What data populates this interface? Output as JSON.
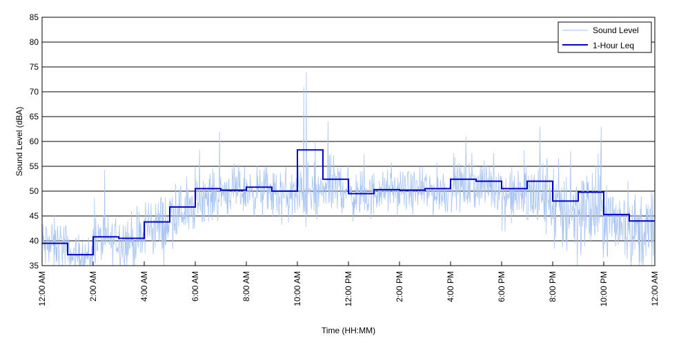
{
  "chart_data": {
    "type": "line",
    "xlabel": "Time (HH:MM)",
    "ylabel": "Sound Level (dBA)",
    "xlim": [
      0,
      24
    ],
    "ylim": [
      35,
      85
    ],
    "y_ticks": [
      35,
      40,
      45,
      50,
      55,
      60,
      65,
      70,
      75,
      80,
      85
    ],
    "x_ticks": [
      {
        "value": 0,
        "label": "12:00 AM"
      },
      {
        "value": 2,
        "label": "2:00 AM"
      },
      {
        "value": 4,
        "label": "4:00 AM"
      },
      {
        "value": 6,
        "label": "6:00 AM"
      },
      {
        "value": 8,
        "label": "8:00 AM"
      },
      {
        "value": 10,
        "label": "10:00 AM"
      },
      {
        "value": 12,
        "label": "12:00 PM"
      },
      {
        "value": 14,
        "label": "2:00 PM"
      },
      {
        "value": 16,
        "label": "4:00 PM"
      },
      {
        "value": 18,
        "label": "6:00 PM"
      },
      {
        "value": 20,
        "label": "8:00 PM"
      },
      {
        "value": 22,
        "label": "10:00 PM"
      },
      {
        "value": 24,
        "label": "12:00 AM"
      }
    ],
    "grid": "horizontal",
    "legend_position": "top-right",
    "series": [
      {
        "name": "Sound Level",
        "color": "#a8c4f0",
        "style": "thin-line",
        "hourly_mean": [
          39,
          37,
          40,
          40,
          43,
          46,
          49,
          50,
          50,
          49,
          49,
          51,
          49,
          50,
          50,
          50,
          51,
          51,
          49,
          49,
          46,
          46,
          44,
          42
        ],
        "hourly_spread": [
          3.5,
          2.5,
          3,
          3.5,
          4,
          3.5,
          3,
          3,
          3,
          3.5,
          4,
          3.5,
          3,
          2.5,
          2.5,
          3,
          3,
          3,
          3.5,
          5,
          6,
          6,
          5,
          5
        ],
        "peaks": [
          {
            "x": 10.35,
            "y": 74
          },
          {
            "x": 10.25,
            "y": 71
          },
          {
            "x": 11.2,
            "y": 64
          },
          {
            "x": 6.95,
            "y": 62
          },
          {
            "x": 16.6,
            "y": 61
          },
          {
            "x": 19.5,
            "y": 63
          },
          {
            "x": 21.9,
            "y": 63
          },
          {
            "x": 10.7,
            "y": 60
          },
          {
            "x": 20.7,
            "y": 58
          }
        ]
      },
      {
        "name": "1-Hour Leq",
        "color": "#0000cc",
        "style": "step",
        "values": [
          39.5,
          37.2,
          40.8,
          40.5,
          43.8,
          46.8,
          50.5,
          50.2,
          50.8,
          50.0,
          58.3,
          52.4,
          49.5,
          50.3,
          50.2,
          50.5,
          52.4,
          52.0,
          50.5,
          52.0,
          48.0,
          49.8,
          45.3,
          44.0
        ]
      }
    ]
  }
}
